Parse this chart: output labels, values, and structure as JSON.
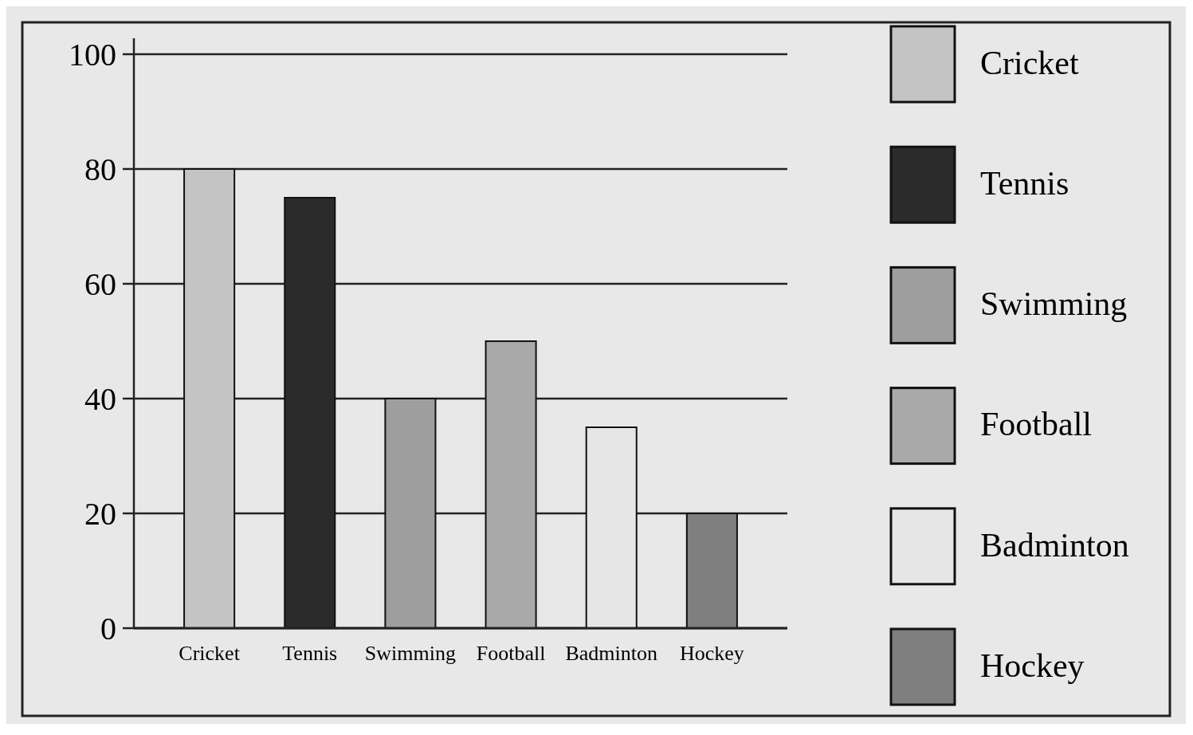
{
  "chart_data": {
    "type": "bar",
    "categories": [
      "Cricket",
      "Tennis",
      "Swimming",
      "Football",
      "Badminton",
      "Hockey"
    ],
    "series": [
      {
        "name": "Cricket",
        "color": "#c4c4c4",
        "values": [
          80,
          null,
          null,
          null,
          null,
          null
        ]
      },
      {
        "name": "Tennis",
        "color": "#2b2b2b",
        "values": [
          null,
          75,
          null,
          null,
          null,
          null
        ]
      },
      {
        "name": "Swimming",
        "color": "#9e9e9e",
        "values": [
          null,
          null,
          40,
          null,
          null,
          null
        ]
      },
      {
        "name": "Football",
        "color": "#a9a9a9",
        "values": [
          null,
          null,
          null,
          50,
          null,
          null
        ]
      },
      {
        "name": "Badminton",
        "color": "#e6e6e6",
        "values": [
          null,
          null,
          null,
          null,
          35,
          null
        ]
      },
      {
        "name": "Hockey",
        "color": "#7f7f7f",
        "values": [
          null,
          null,
          null,
          null,
          null,
          20
        ]
      }
    ],
    "ylim": [
      0,
      100
    ],
    "yticks": [
      0,
      20,
      40,
      60,
      80,
      100
    ],
    "grid": "y",
    "legend": "right"
  }
}
